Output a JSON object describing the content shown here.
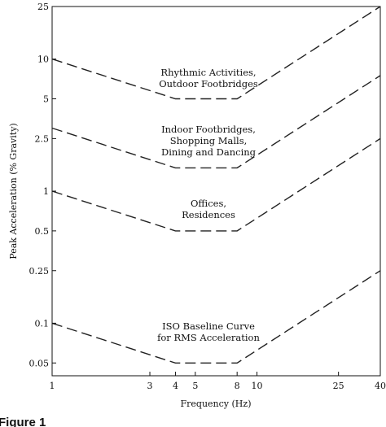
{
  "chart_data": {
    "type": "line",
    "title": "",
    "xlabel": "Frequency (Hz)",
    "ylabel": "Peak Acceleration (% Gravity)",
    "xscale": "log",
    "yscale": "log",
    "xlim": [
      1,
      40
    ],
    "ylim": [
      0.04,
      25
    ],
    "x_ticks": [
      {
        "value": 1,
        "label": "1"
      },
      {
        "value": 3,
        "label": "3"
      },
      {
        "value": 4,
        "label": "4"
      },
      {
        "value": 5,
        "label": "5"
      },
      {
        "value": 8,
        "label": "8"
      },
      {
        "value": 10,
        "label": "10"
      },
      {
        "value": 25,
        "label": "25"
      },
      {
        "value": 40,
        "label": "40"
      }
    ],
    "y_ticks": [
      {
        "value": 0.05,
        "label": "0.05"
      },
      {
        "value": 0.1,
        "label": "0.1"
      },
      {
        "value": 0.25,
        "label": "0.25"
      },
      {
        "value": 0.5,
        "label": "0.5"
      },
      {
        "value": 1,
        "label": "1"
      },
      {
        "value": 2.5,
        "label": "2.5"
      },
      {
        "value": 5,
        "label": "5"
      },
      {
        "value": 10,
        "label": "10"
      },
      {
        "value": 25,
        "label": "25"
      }
    ],
    "grid": false,
    "line_style": "dashed",
    "series": [
      {
        "x": [
          1,
          4,
          8,
          40
        ],
        "y": [
          10,
          5,
          5,
          25
        ]
      },
      {
        "x": [
          1,
          4,
          8,
          40
        ],
        "y": [
          3,
          1.5,
          1.5,
          7.5
        ]
      },
      {
        "x": [
          1,
          4,
          8,
          40
        ],
        "y": [
          1,
          0.5,
          0.5,
          2.5
        ]
      },
      {
        "x": [
          1,
          4,
          8,
          40
        ],
        "y": [
          0.1,
          0.05,
          0.05,
          0.25
        ]
      }
    ],
    "annotations": [
      {
        "lines": [
          "Rhythmic Activities,",
          "Outdoor Footbridges"
        ]
      },
      {
        "lines": [
          "Indoor Footbridges,",
          "Shopping Malls,",
          "Dining and Dancing"
        ]
      },
      {
        "lines": [
          "Offices,",
          "Residences"
        ]
      },
      {
        "lines": [
          "ISO Baseline Curve",
          "for RMS Acceleration"
        ]
      }
    ]
  },
  "caption": "Figure 1"
}
